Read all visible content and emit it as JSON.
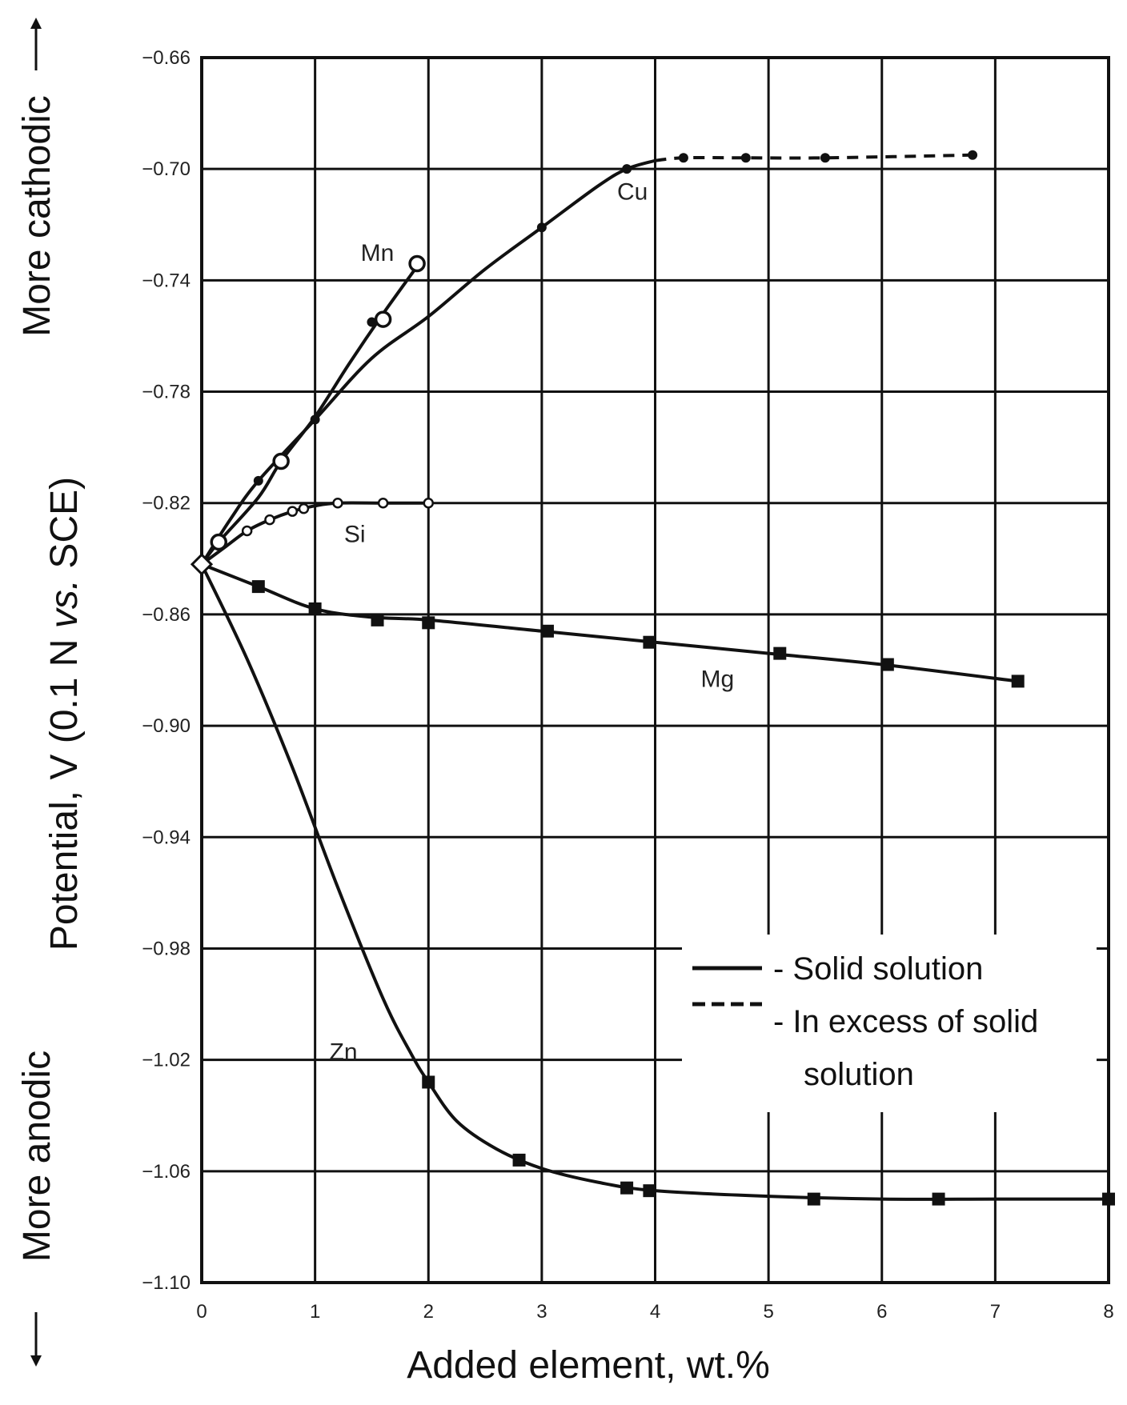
{
  "chart_data": {
    "type": "line",
    "xlabel": "Added element, wt.%",
    "ylabel": "Potential, V (0.1  N vs. SCE)",
    "ylabel_parts": {
      "pre": "Potential, V (0.1  N ",
      "italic": "vs.",
      "post": " SCE)"
    },
    "top_side_label": "More cathodic",
    "bottom_side_label": "More anodic",
    "xlim": [
      0,
      8
    ],
    "ylim": [
      -1.1,
      -0.66
    ],
    "x_ticks": [
      "0",
      "1",
      "2",
      "3",
      "4",
      "5",
      "6",
      "7",
      "8"
    ],
    "y_ticks": [
      "-0.66",
      "-0.70",
      "-0.74",
      "-0.78",
      "-0.82",
      "-0.86",
      "-0.90",
      "-0.94",
      "-0.98",
      "-1.02",
      "-1.06",
      "-1.10"
    ],
    "grid": true,
    "series": [
      {
        "name": "Cu",
        "marker": "dot-small",
        "solid": {
          "x": [
            0,
            0.25,
            0.5,
            1.0,
            1.5,
            2.0,
            2.5,
            3.0,
            3.5,
            3.75,
            4.0
          ],
          "y": [
            -0.842,
            -0.826,
            -0.812,
            -0.79,
            -0.768,
            -0.753,
            -0.736,
            -0.721,
            -0.706,
            -0.7,
            -0.697
          ]
        },
        "excess": {
          "x": [
            4.0,
            4.25,
            4.8,
            5.5,
            6.8
          ],
          "y": [
            -0.697,
            -0.696,
            -0.696,
            -0.696,
            -0.695
          ]
        },
        "points": {
          "x": [
            0.5,
            1.0,
            1.5,
            3.0,
            3.75,
            4.25,
            4.8,
            5.5,
            6.8
          ],
          "y": [
            -0.812,
            -0.79,
            -0.755,
            -0.721,
            -0.7,
            -0.696,
            -0.696,
            -0.696,
            -0.695
          ]
        }
      },
      {
        "name": "Mn",
        "marker": "open-circle",
        "solid": {
          "x": [
            0,
            0.15,
            0.5,
            0.7,
            1.0,
            1.3,
            1.6,
            1.9
          ],
          "y": [
            -0.842,
            -0.834,
            -0.818,
            -0.805,
            -0.789,
            -0.77,
            -0.752,
            -0.735
          ]
        },
        "points": {
          "x": [
            0.15,
            0.7,
            1.6,
            1.9
          ],
          "y": [
            -0.834,
            -0.805,
            -0.754,
            -0.734
          ]
        }
      },
      {
        "name": "Si",
        "marker": "small-open-circle",
        "solid": {
          "x": [
            0,
            0.2,
            0.4,
            0.6,
            0.8,
            1.0,
            1.2,
            1.6,
            2.0
          ],
          "y": [
            -0.842,
            -0.836,
            -0.83,
            -0.826,
            -0.823,
            -0.821,
            -0.82,
            -0.82,
            -0.82
          ]
        },
        "points": {
          "x": [
            0.4,
            0.6,
            0.8,
            0.9,
            1.2,
            1.6,
            2.0
          ],
          "y": [
            -0.83,
            -0.826,
            -0.823,
            -0.822,
            -0.82,
            -0.82,
            -0.82
          ]
        }
      },
      {
        "name": "Mg",
        "marker": "square",
        "solid": {
          "x": [
            0,
            0.5,
            1.0,
            1.5,
            2.0,
            3.0,
            4.0,
            5.0,
            6.0,
            7.2
          ],
          "y": [
            -0.842,
            -0.85,
            -0.858,
            -0.861,
            -0.862,
            -0.866,
            -0.87,
            -0.874,
            -0.878,
            -0.884
          ]
        },
        "points": {
          "x": [
            0.5,
            1.0,
            1.55,
            2.0,
            3.05,
            3.95,
            5.1,
            6.05,
            7.2
          ],
          "y": [
            -0.85,
            -0.858,
            -0.862,
            -0.863,
            -0.866,
            -0.87,
            -0.874,
            -0.878,
            -0.884
          ]
        }
      },
      {
        "name": "Zn",
        "marker": "square",
        "solid": {
          "x": [
            0,
            0.4,
            0.8,
            1.2,
            1.6,
            1.85,
            2.0,
            2.25,
            2.6,
            3.0,
            3.5,
            4.0,
            5.0,
            6.0,
            7.0,
            8.0
          ],
          "y": [
            -0.842,
            -0.876,
            -0.915,
            -0.958,
            -0.998,
            -1.018,
            -1.028,
            -1.042,
            -1.052,
            -1.059,
            -1.064,
            -1.067,
            -1.069,
            -1.07,
            -1.07,
            -1.07
          ]
        },
        "points": {
          "x": [
            2.0,
            2.8,
            3.75,
            3.95,
            5.4,
            6.5,
            8.0
          ],
          "y": [
            -1.028,
            -1.056,
            -1.066,
            -1.067,
            -1.07,
            -1.07,
            -1.07
          ]
        }
      }
    ],
    "origin_point": {
      "x": 0,
      "y": -0.842
    },
    "series_labels": [
      {
        "text": "Cu",
        "x": 3.8,
        "y": -0.711
      },
      {
        "text": "Mn",
        "x": 1.55,
        "y": -0.733
      },
      {
        "text": "Si",
        "x": 1.35,
        "y": -0.834
      },
      {
        "text": "Mg",
        "x": 4.55,
        "y": -0.886
      },
      {
        "text": "Zn",
        "x": 1.25,
        "y": -1.02
      }
    ],
    "legend": {
      "placement": "lower-right",
      "entries": [
        {
          "style": "solid",
          "text": "- Solid solution"
        },
        {
          "style": "dashed",
          "text": "- In excess of solid",
          "text2": "solution"
        }
      ]
    }
  }
}
